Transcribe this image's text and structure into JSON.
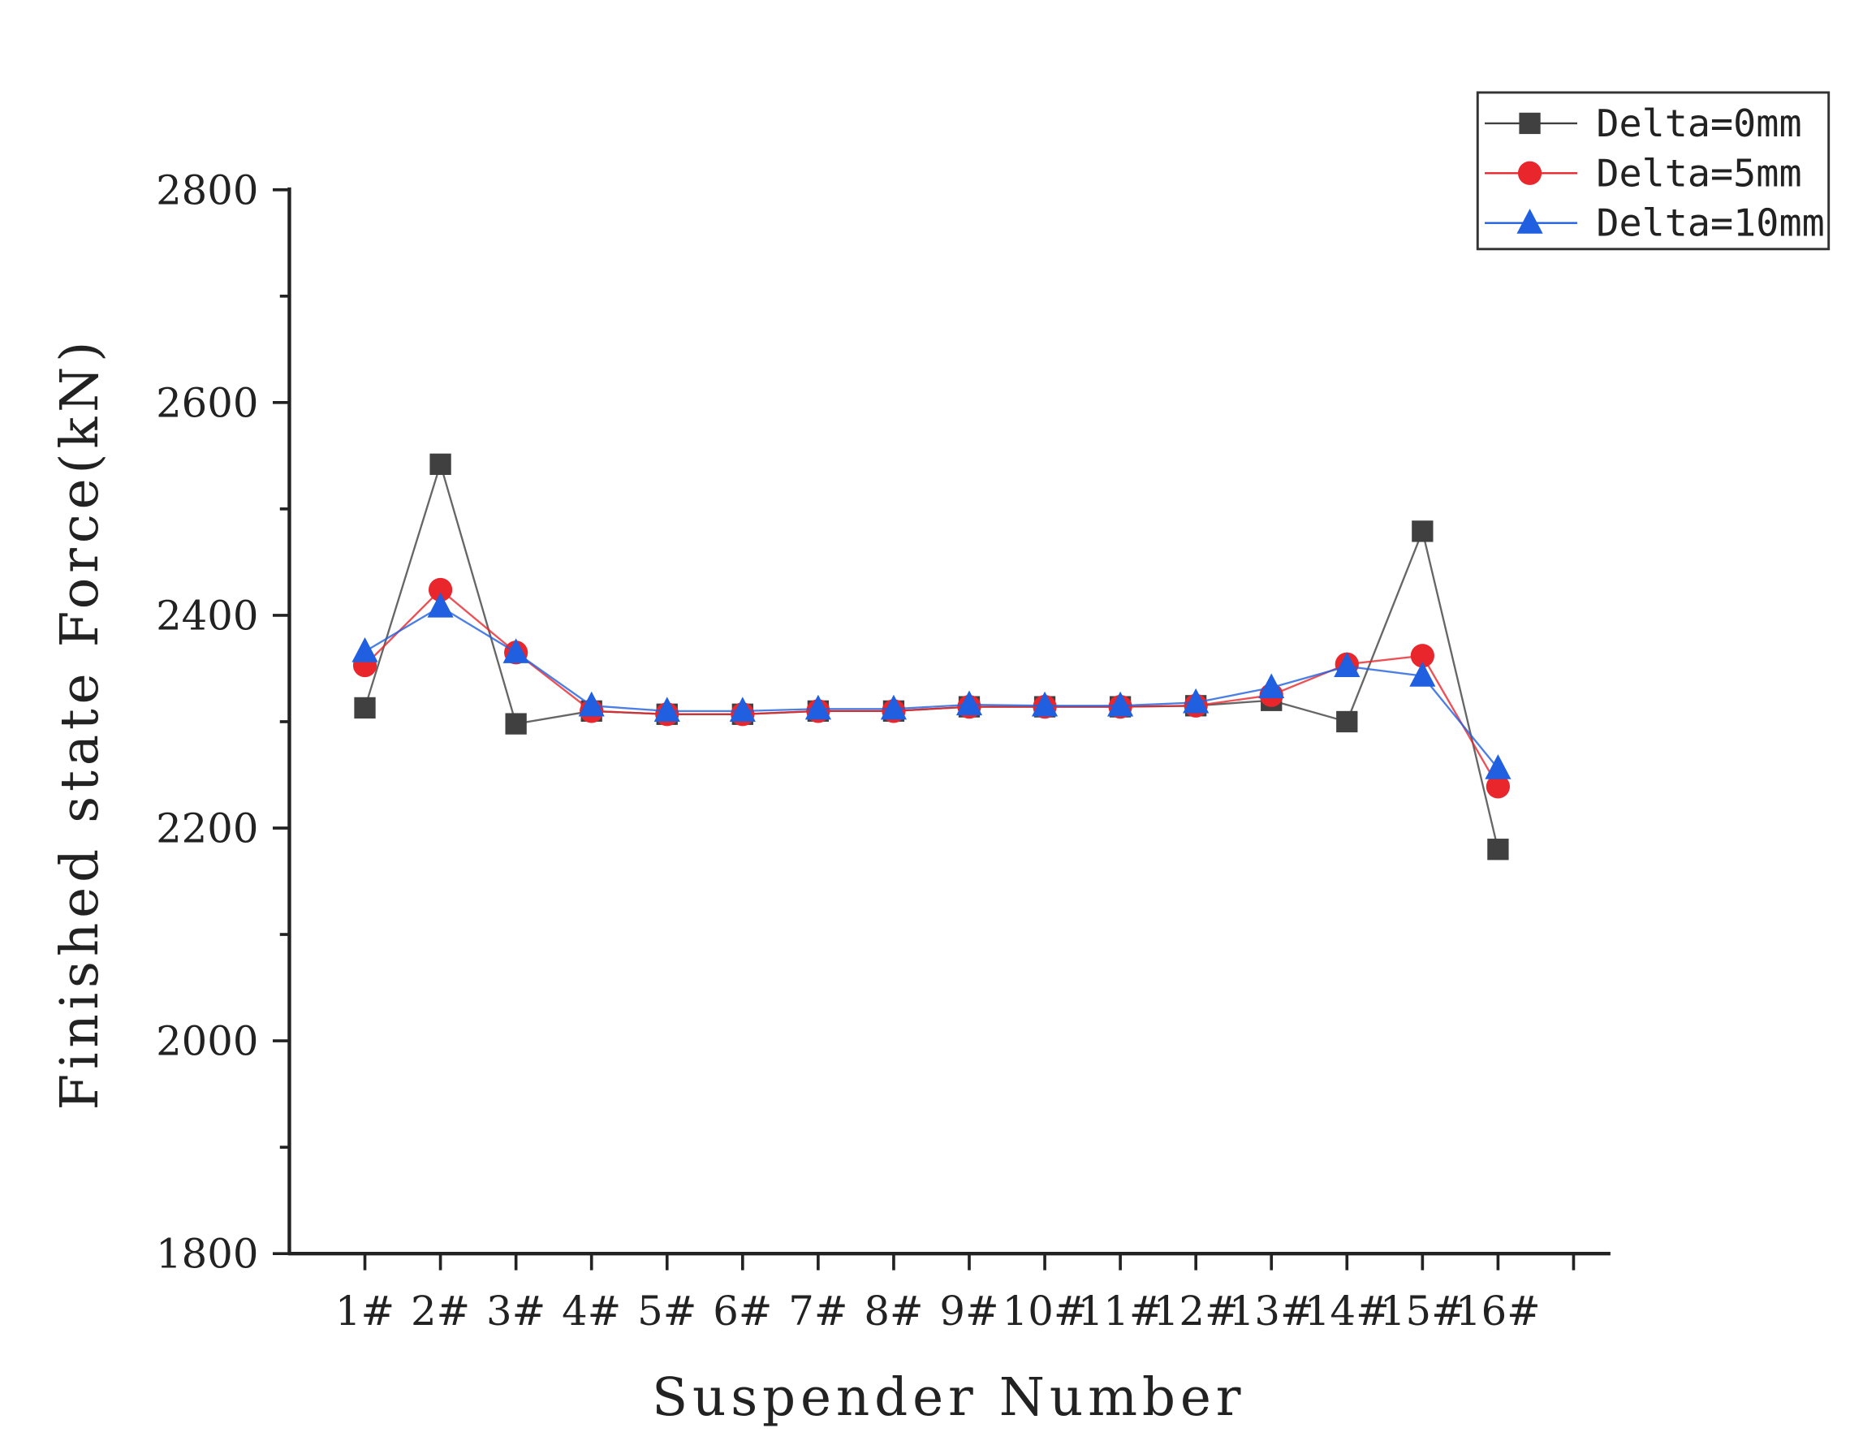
{
  "chart_data": {
    "type": "line",
    "title": "",
    "xlabel": "Suspender Number",
    "ylabel": "Finished state Force(kN)",
    "ylim": [
      1800,
      2800
    ],
    "yticks": [
      1800,
      2000,
      2200,
      2400,
      2600,
      2800
    ],
    "categories": [
      "1#",
      "2#",
      "3#",
      "4#",
      "5#",
      "6#",
      "7#",
      "8#",
      "9#",
      "10#",
      "11#",
      "12#",
      "13#",
      "14#",
      "15#",
      "16#"
    ],
    "legend_position": "top-right",
    "grid": false,
    "series": [
      {
        "name": "Delta=0mm",
        "color": "#404040",
        "marker": "square",
        "values": [
          2313,
          2542,
          2298,
          2310,
          2307,
          2307,
          2310,
          2310,
          2314,
          2314,
          2314,
          2315,
          2320,
          2300,
          2479,
          2180
        ]
      },
      {
        "name": "Delta=5mm",
        "color": "#e8262b",
        "marker": "circle",
        "values": [
          2353,
          2424,
          2365,
          2310,
          2307,
          2307,
          2310,
          2310,
          2314,
          2314,
          2314,
          2315,
          2325,
          2354,
          2362,
          2239
        ]
      },
      {
        "name": "Delta=10mm",
        "color": "#1f5fe0",
        "marker": "triangle",
        "values": [
          2366,
          2408,
          2365,
          2315,
          2310,
          2310,
          2312,
          2312,
          2316,
          2315,
          2315,
          2318,
          2332,
          2352,
          2343,
          2256
        ]
      }
    ]
  }
}
